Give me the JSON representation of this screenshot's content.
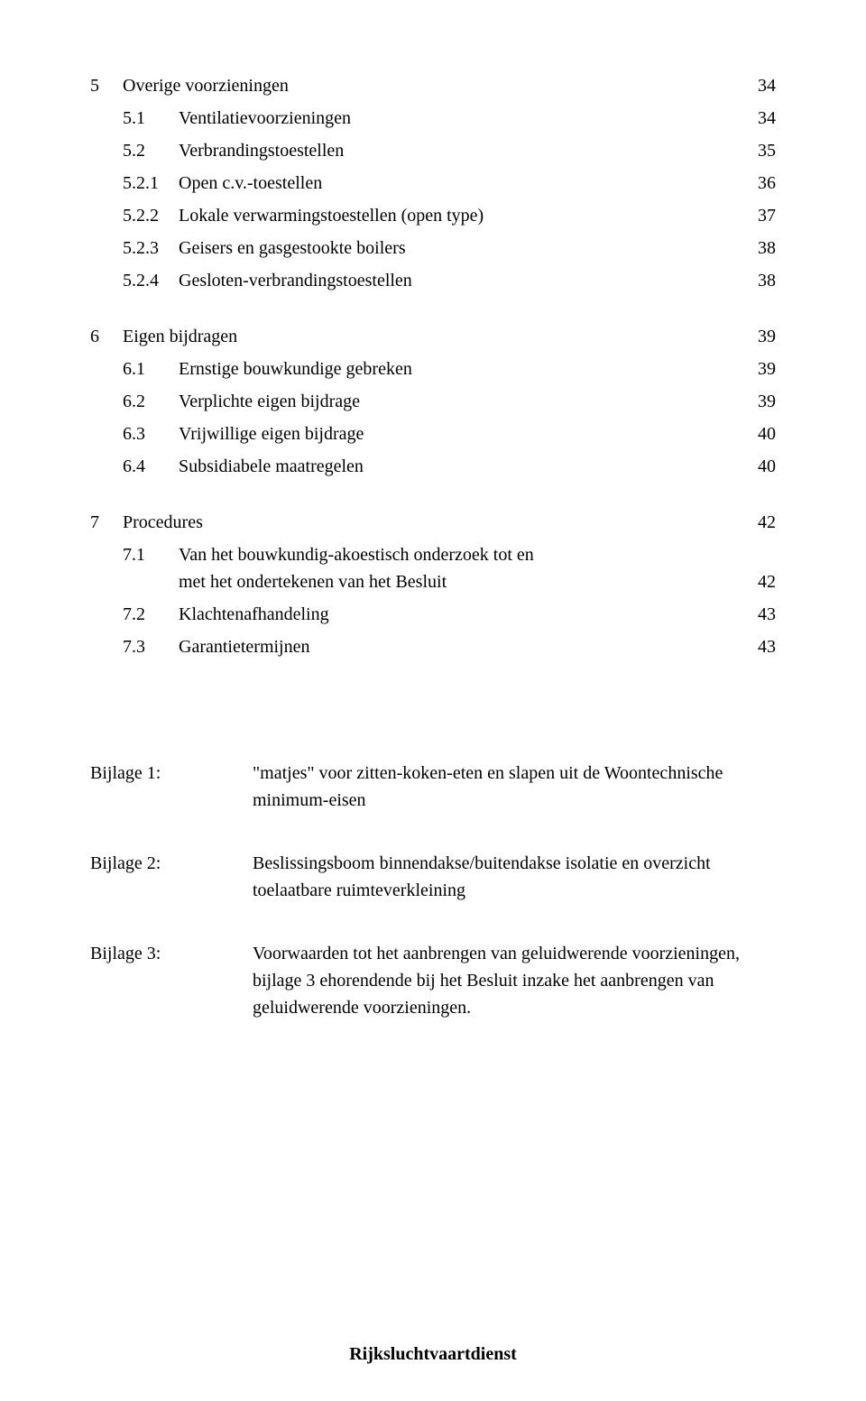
{
  "sections": [
    {
      "num": "5",
      "title": "Overige voorzieningen",
      "page": "34",
      "items": [
        {
          "num": "5.1",
          "title": "Ventilatievoorzieningen",
          "page": "34"
        },
        {
          "num": "5.2",
          "title": "Verbrandingstoestellen",
          "page": "35"
        },
        {
          "num": "5.2.1",
          "title": "Open c.v.-toestellen",
          "page": "36"
        },
        {
          "num": "5.2.2",
          "title": "Lokale verwarmingstoestellen (open type)",
          "page": "37"
        },
        {
          "num": "5.2.3",
          "title": "Geisers en gasgestookte boilers",
          "page": "38"
        },
        {
          "num": "5.2.4",
          "title": "Gesloten-verbrandingstoestellen",
          "page": "38"
        }
      ]
    },
    {
      "num": "6",
      "title": "Eigen bijdragen",
      "page": "39",
      "items": [
        {
          "num": "6.1",
          "title": "Ernstige bouwkundige gebreken",
          "page": "39"
        },
        {
          "num": "6.2",
          "title": "Verplichte eigen bijdrage",
          "page": "39"
        },
        {
          "num": "6.3",
          "title": "Vrijwillige eigen bijdrage",
          "page": "40"
        },
        {
          "num": "6.4",
          "title": "Subsidiabele maatregelen",
          "page": "40"
        }
      ]
    },
    {
      "num": "7",
      "title": "Procedures",
      "page": "42",
      "items": [
        {
          "num": "7.1",
          "title_line1": "Van het bouwkundig-akoestisch onderzoek tot en",
          "title_line2": "met het ondertekenen van het Besluit",
          "page": "42",
          "multiline": true
        },
        {
          "num": "7.2",
          "title": "Klachtenafhandeling",
          "page": "43"
        },
        {
          "num": "7.3",
          "title": "Garantietermijnen",
          "page": "43"
        }
      ]
    }
  ],
  "bijlagen": [
    {
      "label": "Bijlage 1:",
      "text": "\"matjes\" voor zitten-koken-eten en slapen uit de Woontechnische minimum-eisen"
    },
    {
      "label": "Bijlage 2:",
      "text": "Beslissingsboom binnendakse/buitendakse isolatie en overzicht toelaatbare ruimteverkleining"
    },
    {
      "label": "Bijlage 3:",
      "text": "Voorwaarden tot het aanbrengen van geluidwerende voorzieningen, bijlage 3 ehorendende bij het Besluit inzake het aanbrengen van geluidwerende voorzieningen."
    }
  ],
  "footer": "Rijksluchtvaartdienst"
}
